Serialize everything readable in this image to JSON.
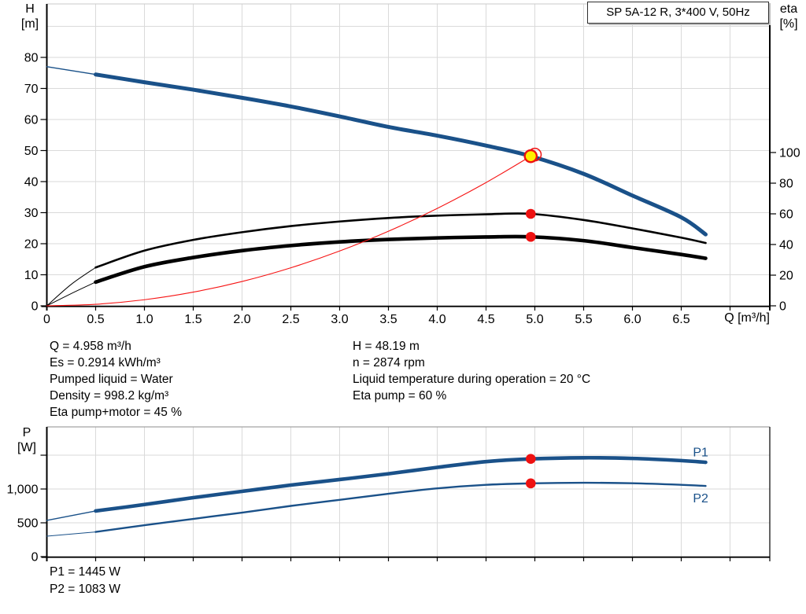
{
  "title_box": {
    "label": "SP 5A-12 R, 3*400 V, 50Hz"
  },
  "axis_labels": {
    "h_symbol": "H",
    "h_unit": "[m]",
    "eta_symbol": "eta",
    "eta_unit": "[%]",
    "p_symbol": "P",
    "p_unit": "[W]",
    "q_axis": "Q [m³/h]"
  },
  "info_left": {
    "lines": [
      "Q = 4.958 m³/h",
      "Es = 0.2914 kWh/m³",
      "Pumped liquid = Water",
      "Density = 998.2 kg/m³",
      "Eta pump+motor = 45 %"
    ]
  },
  "info_right": {
    "lines": [
      "H = 48.19 m",
      "n = 2874 rpm",
      "Liquid temperature during operation = 20 °C",
      "Eta pump = 60 %"
    ]
  },
  "footer": {
    "lines": [
      "P1 = 1445 W",
      "P2 = 1083 W"
    ]
  },
  "colors": {
    "curve_blue": "#1a5189",
    "marker_red": "#ee1111",
    "duty_yellow": "#ffef00",
    "system_red": "#f61313",
    "grid": "#dadada",
    "axis": "#000000",
    "text": "#000000"
  },
  "chart_data": [
    {
      "type": "line",
      "title": "SP 5A-12 R, 3*400 V, 50Hz",
      "xlabel": "Q [m³/h]",
      "ylabel": "H [m]",
      "y2label": "eta [%]",
      "xlim": [
        0,
        7.41
      ],
      "ylim": [
        0,
        97.2
      ],
      "y2lim": [
        0,
        196.9
      ],
      "grid": true,
      "legend_position": "none",
      "x_tick_values": [
        0,
        0.5,
        1,
        1.5,
        2,
        2.5,
        3,
        3.5,
        4,
        4.5,
        5,
        5.5,
        6,
        6.5,
        7
      ],
      "x_tick_labels": [
        "0",
        "0.5",
        "1.0",
        "1.5",
        "2.0",
        "2.5",
        "3.0",
        "3.5",
        "4.0",
        "4.5",
        "5.0",
        "5.5",
        "6.0",
        "6.5",
        ""
      ],
      "y_tick_values": [
        0,
        10,
        20,
        30,
        40,
        50,
        60,
        70,
        80
      ],
      "y_tick_labels": [
        "0",
        "10",
        "20",
        "30",
        "40",
        "50",
        "60",
        "70",
        "80"
      ],
      "y2_tick_values": [
        0,
        20,
        40,
        60,
        80,
        100
      ],
      "y2_tick_labels": [
        "0",
        "20",
        "40",
        "60",
        "80",
        "100"
      ],
      "y_grid_step": 10,
      "series": [
        {
          "key": "eta-pump-curve",
          "name": "Eta pump",
          "axis": "y2",
          "color": "#000000",
          "width": 2.6,
          "thin_width": 1,
          "thin_until": 0.5,
          "points": [
            [
              0,
              0
            ],
            [
              0.25,
              14
            ],
            [
              0.5,
              25
            ],
            [
              1,
              36
            ],
            [
              1.5,
              43
            ],
            [
              2,
              48
            ],
            [
              2.5,
              52
            ],
            [
              3,
              55
            ],
            [
              3.5,
              57.3
            ],
            [
              4,
              58.8
            ],
            [
              4.5,
              59.7
            ],
            [
              4.958,
              60
            ],
            [
              5.5,
              56
            ],
            [
              6,
              50.5
            ],
            [
              6.5,
              44.5
            ],
            [
              6.75,
              41
            ]
          ]
        },
        {
          "key": "eta-pump-motor-curve",
          "name": "Eta pump+motor",
          "axis": "y2",
          "color": "#000000",
          "width": 4.6,
          "thin_width": 1,
          "thin_until": 0.5,
          "points": [
            [
              0,
              0
            ],
            [
              0.25,
              8
            ],
            [
              0.5,
              15.5
            ],
            [
              1,
              25.5
            ],
            [
              1.5,
              31.5
            ],
            [
              2,
              36
            ],
            [
              2.5,
              39.3
            ],
            [
              3,
              41.7
            ],
            [
              3.5,
              43.3
            ],
            [
              4,
              44.3
            ],
            [
              4.5,
              44.9
            ],
            [
              4.958,
              45
            ],
            [
              5.5,
              42.5
            ],
            [
              6,
              38
            ],
            [
              6.5,
              33.5
            ],
            [
              6.75,
              31
            ]
          ]
        },
        {
          "key": "system-curve",
          "name": "System curve",
          "axis": "y",
          "color": "#f61313",
          "width": 1.1,
          "points": [
            [
              0,
              0
            ],
            [
              0.5,
              0.49
            ],
            [
              1,
              1.96
            ],
            [
              1.5,
              4.41
            ],
            [
              2,
              7.84
            ],
            [
              2.5,
              12.25
            ],
            [
              3,
              17.65
            ],
            [
              3.5,
              24.02
            ],
            [
              4,
              31.37
            ],
            [
              4.5,
              39.69
            ],
            [
              4.958,
              48.19
            ]
          ]
        },
        {
          "key": "head-curve",
          "name": "H(Q) head curve",
          "axis": "y",
          "color": "#1a5189",
          "width": 5,
          "thin_width": 1.4,
          "thin_until": 0.5,
          "points": [
            [
              0,
              77
            ],
            [
              0.5,
              74.5
            ],
            [
              1,
              72
            ],
            [
              1.5,
              69.6
            ],
            [
              2,
              67
            ],
            [
              2.5,
              64.2
            ],
            [
              3,
              61
            ],
            [
              3.5,
              57.6
            ],
            [
              4,
              54.8
            ],
            [
              4.5,
              51.6
            ],
            [
              4.958,
              48.19
            ],
            [
              5.5,
              42.5
            ],
            [
              6,
              35.5
            ],
            [
              6.5,
              28.5
            ],
            [
              6.75,
              23
            ]
          ]
        }
      ],
      "markers": [
        {
          "key": "eta-pump-point",
          "kind": "dot",
          "axis": "y2",
          "x": 4.958,
          "value": 60,
          "color": "#ee1111"
        },
        {
          "key": "eta-pump-motor-point",
          "kind": "dot",
          "axis": "y2",
          "x": 4.958,
          "value": 45,
          "color": "#ee1111"
        },
        {
          "key": "rated-point-ring",
          "kind": "ring",
          "axis": "y",
          "x": 5.0,
          "value": 48.7,
          "color": "#ee1111"
        },
        {
          "key": "duty-point",
          "kind": "duty",
          "axis": "y",
          "x": 4.958,
          "value": 48.19,
          "color": "#ee1111",
          "fill": "#ffef00"
        }
      ]
    },
    {
      "type": "line",
      "title": "",
      "xlabel": "",
      "ylabel": "P [W]",
      "xlim": [
        0,
        7.41
      ],
      "ylim": [
        0,
        1919
      ],
      "grid": true,
      "x_tick_values": [
        0,
        0.5,
        1,
        1.5,
        2,
        2.5,
        3,
        3.5,
        4,
        4.5,
        5,
        5.5,
        6,
        6.5,
        7
      ],
      "x_tick_labels": [
        "",
        "",
        "",
        "",
        "",
        "",
        "",
        "",
        "",
        "",
        "",
        "",
        "",
        "",
        ""
      ],
      "y_tick_values": [
        0,
        500,
        1000,
        1500
      ],
      "y_tick_labels": [
        "0",
        "500",
        "1,000",
        ""
      ],
      "y_grid_step": 500,
      "series": [
        {
          "key": "p1-curve",
          "name": "P1",
          "axis": "y",
          "color": "#1a5189",
          "width": 4.6,
          "thin_width": 1.4,
          "thin_until": 0.5,
          "end_label": "P1",
          "label_pos": [
            6.62,
            1480
          ],
          "points": [
            [
              0,
              535
            ],
            [
              0.5,
              675
            ],
            [
              1,
              770
            ],
            [
              1.5,
              872
            ],
            [
              2,
              965
            ],
            [
              2.5,
              1058
            ],
            [
              3,
              1140
            ],
            [
              3.5,
              1225
            ],
            [
              4,
              1320
            ],
            [
              4.5,
              1405
            ],
            [
              4.958,
              1445
            ],
            [
              5.5,
              1462
            ],
            [
              6,
              1452
            ],
            [
              6.5,
              1420
            ],
            [
              6.75,
              1395
            ]
          ]
        },
        {
          "key": "p2-curve",
          "name": "P2",
          "axis": "y",
          "color": "#1a5189",
          "width": 2.4,
          "thin_width": 1,
          "thin_until": 0.5,
          "end_label": "P2",
          "label_pos": [
            6.62,
            800
          ],
          "points": [
            [
              0,
              302
            ],
            [
              0.5,
              365
            ],
            [
              1,
              465
            ],
            [
              1.5,
              558
            ],
            [
              2,
              651
            ],
            [
              2.5,
              750
            ],
            [
              3,
              840
            ],
            [
              3.5,
              930
            ],
            [
              4,
              1010
            ],
            [
              4.5,
              1062
            ],
            [
              4.958,
              1083
            ],
            [
              5.5,
              1092
            ],
            [
              6,
              1085
            ],
            [
              6.5,
              1062
            ],
            [
              6.75,
              1045
            ]
          ]
        }
      ],
      "markers": [
        {
          "key": "p1-duty-point",
          "kind": "dot",
          "axis": "y",
          "x": 4.958,
          "value": 1445,
          "color": "#ee1111"
        },
        {
          "key": "p2-duty-point",
          "kind": "dot",
          "axis": "y",
          "x": 4.958,
          "value": 1083,
          "color": "#ee1111"
        }
      ]
    }
  ]
}
